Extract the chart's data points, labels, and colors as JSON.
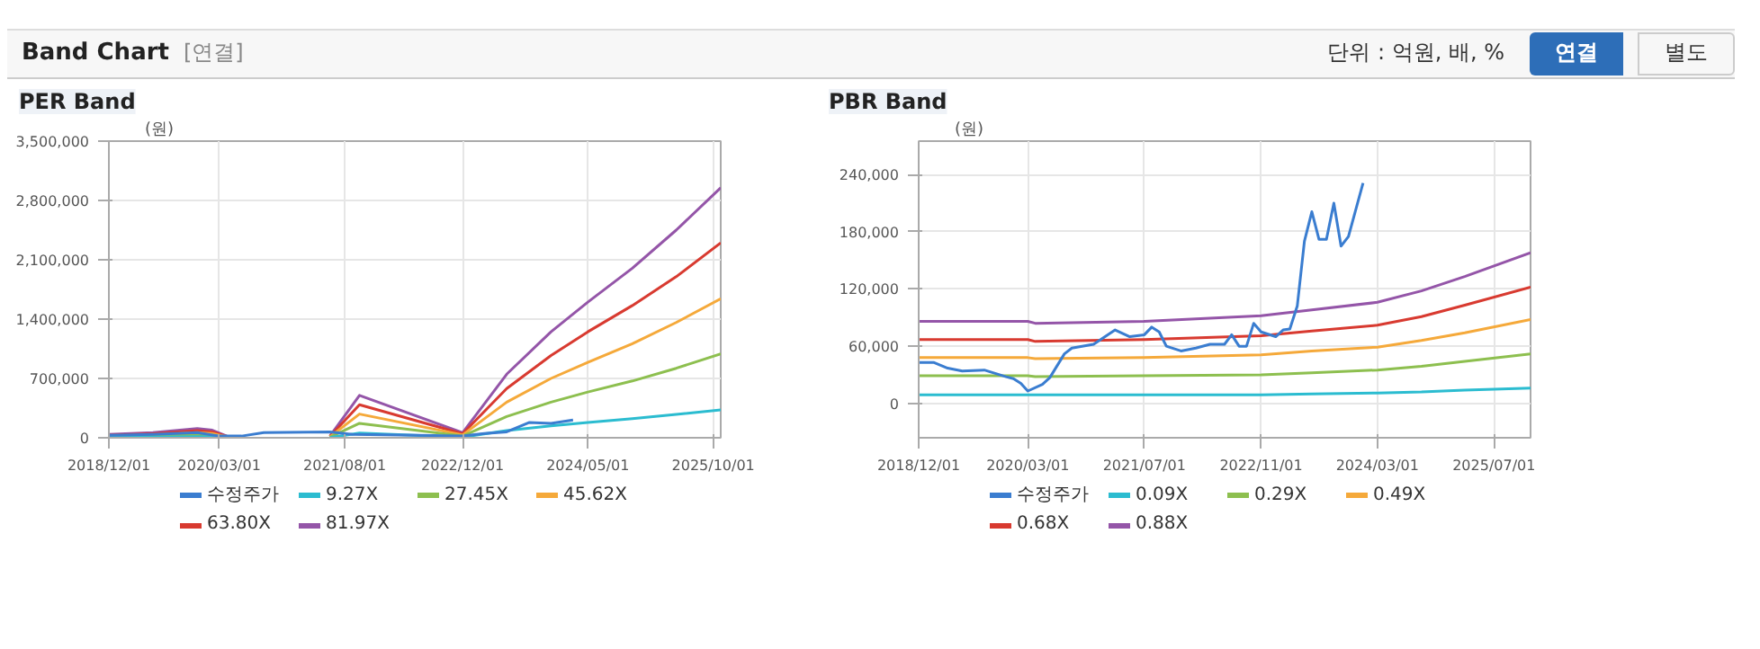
{
  "chart_data": [
    {
      "type": "line",
      "title": "PER Band",
      "ylabel": "(원)",
      "annotations": [
        "Band Chart",
        "[연결]",
        "단위 : 억원, 배, %",
        "연결",
        "별도"
      ],
      "x": [
        "2018-12-01",
        "2019-06-01",
        "2019-12-01",
        "2020-02-01",
        "2020-04-01",
        "2020-10-01",
        "2021-06-01",
        "2021-10-01",
        "2022-12-01",
        "2023-06-01",
        "2023-12-01",
        "2024-05-01",
        "2024-11-01",
        "2025-05-01",
        "2025-11-01"
      ],
      "series": [
        {
          "name": "수정주가",
          "color": "#3a7dd0",
          "x": [
            "2018-12-01",
            "2019-06-01",
            "2019-12-01",
            "2020-03-01",
            "2020-06-01",
            "2020-09-01",
            "2021-06-01",
            "2021-09-01",
            "2022-06-01",
            "2022-12-01",
            "2023-03-01",
            "2023-06-01",
            "2023-09-01",
            "2023-12-01",
            "2024-03-01"
          ],
          "values": [
            30000,
            40000,
            60000,
            20000,
            20000,
            60000,
            70000,
            40000,
            30000,
            20000,
            50000,
            70000,
            180000,
            170000,
            210000
          ]
        },
        {
          "name": "9.27X",
          "color": "#2bbcd0",
          "values": [
            5000,
            7000,
            12000,
            10000,
            2000,
            null,
            2000,
            56000,
            7000,
            85000,
            140000,
            180000,
            225000,
            275000,
            330000
          ]
        },
        {
          "name": "27.45X",
          "color": "#8dbf4f",
          "values": [
            13000,
            20000,
            37000,
            30000,
            7000,
            null,
            7000,
            170000,
            20000,
            250000,
            420000,
            540000,
            670000,
            820000,
            990000
          ]
        },
        {
          "name": "45.62X",
          "color": "#f5a93a",
          "values": [
            22000,
            33000,
            61000,
            50000,
            11000,
            null,
            11000,
            280000,
            33000,
            420000,
            700000,
            890000,
            1110000,
            1360000,
            1640000
          ]
        },
        {
          "name": "63.80X",
          "color": "#d83a30",
          "values": [
            30000,
            47000,
            86000,
            70000,
            16000,
            null,
            16000,
            390000,
            47000,
            580000,
            970000,
            1250000,
            1560000,
            1900000,
            2300000
          ]
        },
        {
          "name": "81.97X",
          "color": "#9455a8",
          "values": [
            40000,
            60000,
            110000,
            90000,
            20000,
            null,
            20000,
            500000,
            60000,
            750000,
            1250000,
            1600000,
            2000000,
            2450000,
            2950000
          ]
        }
      ],
      "xlim": [
        "2018-12-01",
        "2025-11-01"
      ],
      "xticks": [
        {
          "value": "2018-12-01",
          "label": "2018/12/01"
        },
        {
          "value": "2020-03-01",
          "label": "2020/03/01"
        },
        {
          "value": "2021-08-01",
          "label": "2021/08/01"
        },
        {
          "value": "2022-12-01",
          "label": "2022/12/01"
        },
        {
          "value": "2024-05-01",
          "label": "2024/05/01"
        },
        {
          "value": "2025-10-01",
          "label": "2025/10/01"
        }
      ],
      "ylim": [
        0,
        3500000
      ],
      "yticks": [
        {
          "value": 0,
          "label": "0"
        },
        {
          "value": 700000,
          "label": "700,000"
        },
        {
          "value": 1400000,
          "label": "1,400,000"
        },
        {
          "value": 2100000,
          "label": "2,100,000"
        },
        {
          "value": 2800000,
          "label": "2,800,000"
        },
        {
          "value": 3500000,
          "label": "3,500,000"
        }
      ],
      "grid": true,
      "legend": "bottom",
      "marker": "none",
      "line_style": "solid"
    },
    {
      "type": "line",
      "title": "PBR Band",
      "ylabel": "(원)",
      "x": [
        "2018-12-01",
        "2020-03-01",
        "2020-04-01",
        "2021-07-01",
        "2022-11-01",
        "2023-06-01",
        "2024-03-01",
        "2024-09-01",
        "2025-03-01",
        "2025-12-01"
      ],
      "series": [
        {
          "name": "수정주가",
          "color": "#3a7dd0",
          "x": [
            "2018-12-01",
            "2019-02-01",
            "2019-04-01",
            "2019-06-01",
            "2019-09-01",
            "2019-12-01",
            "2020-01-01",
            "2020-02-01",
            "2020-03-01",
            "2020-05-01",
            "2020-06-01",
            "2020-08-01",
            "2020-09-01",
            "2020-12-01",
            "2021-03-01",
            "2021-05-01",
            "2021-07-01",
            "2021-08-01",
            "2021-09-01",
            "2021-10-01",
            "2021-12-01",
            "2022-02-01",
            "2022-04-01",
            "2022-06-01",
            "2022-07-01",
            "2022-08-01",
            "2022-09-01",
            "2022-10-01",
            "2022-11-01",
            "2023-01-01",
            "2023-02-01",
            "2023-03-01",
            "2023-04-01",
            "2023-05-01",
            "2023-06-01",
            "2023-07-01",
            "2023-08-01",
            "2023-09-01",
            "2023-10-01",
            "2023-11-01",
            "2024-01-01"
          ],
          "values": [
            43000,
            43000,
            37000,
            34000,
            35000,
            28000,
            26000,
            21000,
            13000,
            20000,
            27000,
            52000,
            58000,
            62000,
            77000,
            70000,
            72000,
            80000,
            75000,
            60000,
            55000,
            58000,
            62000,
            62000,
            72000,
            60000,
            60000,
            84000,
            75000,
            70000,
            77000,
            78000,
            102000,
            170000,
            201000,
            172000,
            172000,
            210000,
            165000,
            175000,
            231000
          ]
        },
        {
          "name": "0.09X",
          "color": "#2bbcd0",
          "values": [
            9000,
            9000,
            9000,
            9000,
            9000,
            10000,
            11000,
            12000,
            14000,
            16000
          ]
        },
        {
          "name": "0.29X",
          "color": "#8dbf4f",
          "values": [
            29000,
            29000,
            28000,
            29000,
            30000,
            32000,
            35000,
            39000,
            44000,
            52000
          ]
        },
        {
          "name": "0.49X",
          "color": "#f5a93a",
          "values": [
            48000,
            48000,
            47000,
            48000,
            51000,
            55000,
            59000,
            66000,
            74000,
            88000
          ]
        },
        {
          "name": "0.68X",
          "color": "#d83a30",
          "values": [
            67000,
            67000,
            65000,
            67000,
            71000,
            76000,
            82000,
            91000,
            103000,
            122000
          ]
        },
        {
          "name": "0.88X",
          "color": "#9455a8",
          "values": [
            86000,
            86000,
            84000,
            86000,
            92000,
            98000,
            106000,
            118000,
            133000,
            158000
          ]
        }
      ],
      "xlim": [
        "2018-12-01",
        "2025-12-01"
      ],
      "xticks": [
        {
          "value": "2018-12-01",
          "label": "2018/12/01"
        },
        {
          "value": "2020-03-01",
          "label": "2020/03/01"
        },
        {
          "value": "2021-07-01",
          "label": "2021/07/01"
        },
        {
          "value": "2022-11-01",
          "label": "2022/11/01"
        },
        {
          "value": "2024-03-01",
          "label": "2024/03/01"
        },
        {
          "value": "2025-07-01",
          "label": "2025/07/01"
        }
      ],
      "ylim": [
        -36000,
        275000
      ],
      "yticks": [
        {
          "value": 0,
          "label": "0"
        },
        {
          "value": 60000,
          "label": "60,000"
        },
        {
          "value": 120000,
          "label": "120,000"
        },
        {
          "value": 180000,
          "label": "180,000"
        },
        {
          "value": 240000,
          "label": "240,000"
        }
      ],
      "grid": true,
      "legend": "bottom",
      "marker": "none",
      "line_style": "solid"
    }
  ]
}
